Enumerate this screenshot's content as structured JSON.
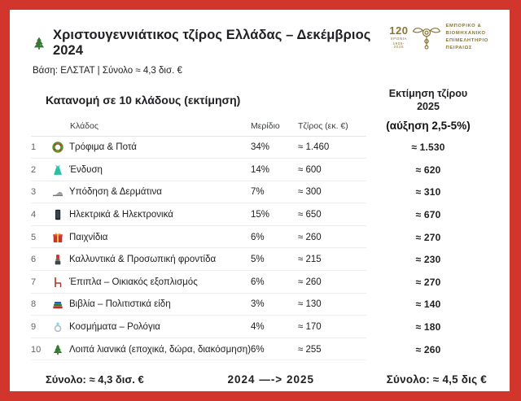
{
  "colors": {
    "border": "#d2352c",
    "logo_gold": "#8a7434",
    "text": "#202124",
    "separator": "#ededed"
  },
  "header": {
    "title": "Χριστουγεννιάτικος τζίρος Ελλάδας – Δεκέμβριος 2024",
    "subtitle": "Βάση: ΕΛΣΤΑΤ | Σύνολο ≈ 4,3 δισ. €",
    "logo": {
      "years_number": "120",
      "years_label": "ΧΡΟΝΙΑ",
      "years_range": "1905-2025",
      "org_line1": "ΕΜΠΟΡΙΚΟ &",
      "org_line2": "ΒΙΟΜΗΧΑΝΙΚΟ",
      "org_line3": "ΕΠΙΜΕΛΗΤΗΡΙΟ",
      "org_line4": "ΠΕΙΡΑΙΩΣ"
    }
  },
  "section": {
    "title": "Κατανομή σε 10 κλάδους (εκτίμηση)",
    "estimate_header_line1": "Εκτίμηση τζίρου",
    "estimate_header_line2": "2025",
    "estimate_subheader": "(αύξηση 2,5-5%)"
  },
  "table": {
    "columns": {
      "sector": "Κλάδος",
      "share": "Μερίδιο",
      "turnover": "Τζίρος (εκ. €)"
    },
    "rows": [
      {
        "rank": "1",
        "icon": "wreath-icon",
        "label": "Τρόφιμα & Ποτά",
        "share": "34%",
        "turnover": "≈ 1.460",
        "estimate": "≈ 1.530"
      },
      {
        "rank": "2",
        "icon": "dress-icon",
        "label": "Ένδυση",
        "share": "14%",
        "turnover": "≈ 600",
        "estimate": "≈ 620"
      },
      {
        "rank": "3",
        "icon": "shoe-icon",
        "label": "Υπόδηση & Δερμάτινα",
        "share": "7%",
        "turnover": "≈ 300",
        "estimate": "≈ 310"
      },
      {
        "rank": "4",
        "icon": "smartphone-icon",
        "label": "Ηλεκτρικά & Ηλεκτρονικά",
        "share": "15%",
        "turnover": "≈ 650",
        "estimate": "≈ 670"
      },
      {
        "rank": "5",
        "icon": "gift-icon",
        "label": "Παιχνίδια",
        "share": "6%",
        "turnover": "≈ 260",
        "estimate": "≈ 270"
      },
      {
        "rank": "6",
        "icon": "lipstick-icon",
        "label": "Καλλυντικά & Προσωπική φροντίδα",
        "share": "5%",
        "turnover": "≈ 215",
        "estimate": "≈ 230"
      },
      {
        "rank": "7",
        "icon": "chair-icon",
        "label": "Έπιπλα – Οικιακός εξοπλισμός",
        "share": "6%",
        "turnover": "≈ 260",
        "estimate": "≈ 270"
      },
      {
        "rank": "8",
        "icon": "books-icon",
        "label": "Βιβλία – Πολιτιστικά είδη",
        "share": "3%",
        "turnover": "≈ 130",
        "estimate": "≈ 140"
      },
      {
        "rank": "9",
        "icon": "ring-icon",
        "label": "Κοσμήματα – Ρολόγια",
        "share": "4%",
        "turnover": "≈ 170",
        "estimate": "≈ 180"
      },
      {
        "rank": "10",
        "icon": "christmas-tree-icon",
        "label": "Λοιπά λιανικά (εποχικά, δώρα, διακόσμηση)",
        "share": "6%",
        "turnover": "≈ 255",
        "estimate": "≈ 260"
      }
    ]
  },
  "footer": {
    "total_2024": "Σύνολο: ≈ 4,3 δισ. €",
    "transition": "2024 —-> 2025",
    "total_2025": "Σύνολο: ≈ 4,5 δις €"
  },
  "chart_data": {
    "type": "table",
    "title": "Χριστουγεννιάτικος τζίρος Ελλάδας – Δεκέμβριος 2024",
    "subtitle": "Βάση: ΕΛΣΤΑΤ | Σύνολο ≈ 4,3 δισ. €",
    "columns": [
      "Κλάδος",
      "Μερίδιο",
      "Τζίρος (εκ. €)",
      "Εκτίμηση τζίρου 2025 (αύξηση 2,5-5%)"
    ],
    "categories": [
      "Τρόφιμα & Ποτά",
      "Ένδυση",
      "Υπόδηση & Δερμάτινα",
      "Ηλεκτρικά & Ηλεκτρονικά",
      "Παιχνίδια",
      "Καλλυντικά & Προσωπική φροντίδα",
      "Έπιπλα – Οικιακός εξοπλισμός",
      "Βιβλία – Πολιτιστικά είδη",
      "Κοσμήματα – Ρολόγια",
      "Λοιπά λιανικά (εποχικά, δώρα, διακόσμηση)"
    ],
    "series": [
      {
        "name": "Μερίδιο (%)",
        "values": [
          34,
          14,
          7,
          15,
          6,
          5,
          6,
          3,
          4,
          6
        ]
      },
      {
        "name": "Τζίρος 2024 (εκ. €)",
        "values": [
          1460,
          600,
          300,
          650,
          260,
          215,
          260,
          130,
          170,
          255
        ]
      },
      {
        "name": "Εκτίμηση 2025 (εκ. €)",
        "values": [
          1530,
          620,
          310,
          670,
          270,
          230,
          270,
          140,
          180,
          260
        ]
      }
    ],
    "totals": {
      "2024": "≈ 4,3 δισ. €",
      "2025": "≈ 4,5 δις €"
    }
  }
}
